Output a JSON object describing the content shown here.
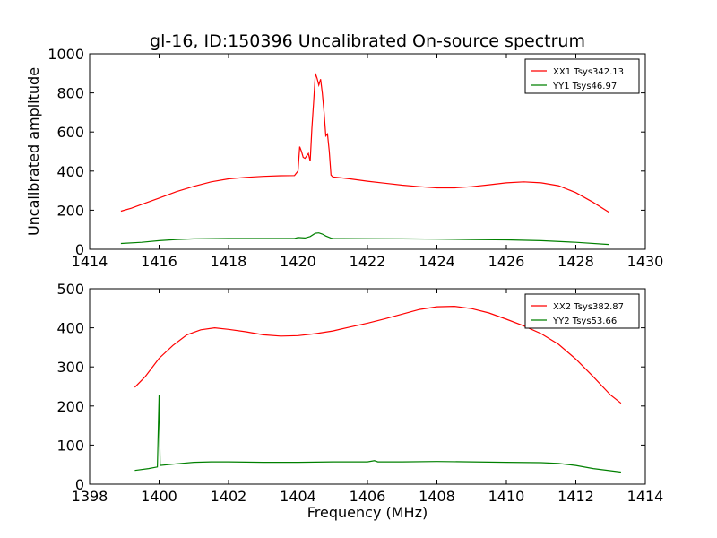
{
  "title": "gl-16, ID:150396 Uncalibrated On-source spectrum",
  "ylabel": "Uncalibrated amplitude",
  "xlabel": "Frequency (MHz)",
  "chart_data": [
    {
      "type": "line",
      "xlim": [
        1414,
        1430
      ],
      "ylim": [
        0,
        1000
      ],
      "xticks": [
        1414,
        1416,
        1418,
        1420,
        1422,
        1424,
        1426,
        1428,
        1430
      ],
      "yticks": [
        0,
        200,
        400,
        600,
        800,
        1000
      ],
      "legend_position": "top-right",
      "series": [
        {
          "name": "XX1 Tsys342.13",
          "color": "#ff0000",
          "points": [
            [
              1414.9,
              195
            ],
            [
              1415.2,
              210
            ],
            [
              1415.5,
              230
            ],
            [
              1416,
              262
            ],
            [
              1416.5,
              295
            ],
            [
              1417,
              322
            ],
            [
              1417.5,
              345
            ],
            [
              1418,
              360
            ],
            [
              1418.5,
              368
            ],
            [
              1419,
              373
            ],
            [
              1419.5,
              376
            ],
            [
              1419.9,
              377
            ],
            [
              1420.0,
              400
            ],
            [
              1420.05,
              525
            ],
            [
              1420.1,
              500
            ],
            [
              1420.15,
              470
            ],
            [
              1420.2,
              465
            ],
            [
              1420.3,
              490
            ],
            [
              1420.35,
              450
            ],
            [
              1420.4,
              620
            ],
            [
              1420.45,
              750
            ],
            [
              1420.5,
              900
            ],
            [
              1420.55,
              875
            ],
            [
              1420.6,
              840
            ],
            [
              1420.65,
              870
            ],
            [
              1420.7,
              800
            ],
            [
              1420.75,
              700
            ],
            [
              1420.8,
              580
            ],
            [
              1420.85,
              590
            ],
            [
              1420.9,
              500
            ],
            [
              1420.95,
              380
            ],
            [
              1421.0,
              370
            ],
            [
              1421.5,
              360
            ],
            [
              1422,
              348
            ],
            [
              1422.5,
              338
            ],
            [
              1423,
              328
            ],
            [
              1423.5,
              320
            ],
            [
              1424,
              314
            ],
            [
              1424.5,
              314
            ],
            [
              1425,
              320
            ],
            [
              1425.5,
              330
            ],
            [
              1426,
              340
            ],
            [
              1426.5,
              345
            ],
            [
              1427,
              340
            ],
            [
              1427.5,
              325
            ],
            [
              1428,
              290
            ],
            [
              1428.5,
              240
            ],
            [
              1428.95,
              190
            ]
          ]
        },
        {
          "name": "YY1 Tsys46.97",
          "color": "#008000",
          "points": [
            [
              1414.9,
              30
            ],
            [
              1415.5,
              36
            ],
            [
              1416,
              44
            ],
            [
              1416.5,
              50
            ],
            [
              1417,
              53
            ],
            [
              1418,
              55
            ],
            [
              1419,
              55
            ],
            [
              1419.9,
              55
            ],
            [
              1420.0,
              60
            ],
            [
              1420.2,
              58
            ],
            [
              1420.35,
              65
            ],
            [
              1420.5,
              82
            ],
            [
              1420.6,
              84
            ],
            [
              1420.7,
              78
            ],
            [
              1420.8,
              68
            ],
            [
              1420.95,
              57
            ],
            [
              1421,
              55
            ],
            [
              1422,
              54
            ],
            [
              1423,
              53
            ],
            [
              1424,
              52
            ],
            [
              1425,
              50
            ],
            [
              1426,
              48
            ],
            [
              1427,
              44
            ],
            [
              1428,
              36
            ],
            [
              1428.95,
              25
            ]
          ]
        }
      ]
    },
    {
      "type": "line",
      "xlim": [
        1398,
        1414
      ],
      "ylim": [
        0,
        500
      ],
      "xticks": [
        1398,
        1400,
        1402,
        1404,
        1406,
        1408,
        1410,
        1412,
        1414
      ],
      "yticks": [
        0,
        100,
        200,
        300,
        400,
        500
      ],
      "legend_position": "top-right",
      "series": [
        {
          "name": "XX2 Tsys382.87",
          "color": "#ff0000",
          "points": [
            [
              1399.3,
              248
            ],
            [
              1399.6,
              275
            ],
            [
              1400,
              322
            ],
            [
              1400.4,
              355
            ],
            [
              1400.8,
              382
            ],
            [
              1401.2,
              395
            ],
            [
              1401.6,
              400
            ],
            [
              1402,
              396
            ],
            [
              1402.5,
              390
            ],
            [
              1403,
              382
            ],
            [
              1403.5,
              379
            ],
            [
              1404,
              380
            ],
            [
              1404.5,
              385
            ],
            [
              1405,
              392
            ],
            [
              1405.5,
              402
            ],
            [
              1406,
              412
            ],
            [
              1406.5,
              423
            ],
            [
              1407,
              435
            ],
            [
              1407.5,
              447
            ],
            [
              1408,
              454
            ],
            [
              1408.5,
              455
            ],
            [
              1409,
              449
            ],
            [
              1409.5,
              438
            ],
            [
              1410,
              422
            ],
            [
              1410.5,
              405
            ],
            [
              1411,
              385
            ],
            [
              1411.5,
              358
            ],
            [
              1412,
              320
            ],
            [
              1412.5,
              275
            ],
            [
              1413,
              228
            ],
            [
              1413.3,
              207
            ]
          ]
        },
        {
          "name": "YY2 Tsys53.66",
          "color": "#008000",
          "points": [
            [
              1399.3,
              35
            ],
            [
              1399.7,
              40
            ],
            [
              1399.95,
              44
            ],
            [
              1400.0,
              228
            ],
            [
              1400.03,
              48
            ],
            [
              1400.5,
              52
            ],
            [
              1401,
              56
            ],
            [
              1401.5,
              57
            ],
            [
              1402,
              57
            ],
            [
              1403,
              56
            ],
            [
              1404,
              56
            ],
            [
              1405,
              57
            ],
            [
              1406,
              57
            ],
            [
              1406.2,
              60
            ],
            [
              1406.3,
              57
            ],
            [
              1407,
              57
            ],
            [
              1408,
              58
            ],
            [
              1409,
              57
            ],
            [
              1410,
              56
            ],
            [
              1411,
              55
            ],
            [
              1411.5,
              53
            ],
            [
              1412,
              48
            ],
            [
              1412.5,
              40
            ],
            [
              1413.3,
              31
            ]
          ]
        }
      ]
    }
  ]
}
